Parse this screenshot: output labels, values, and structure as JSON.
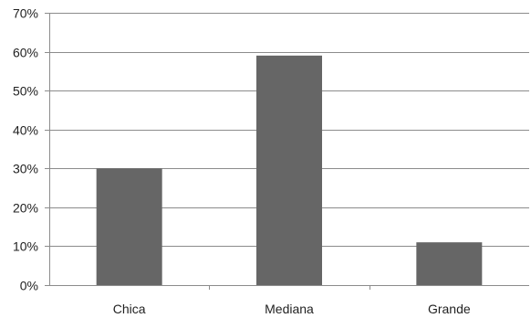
{
  "chart_data": {
    "type": "bar",
    "title": "",
    "xlabel": "",
    "ylabel": "",
    "categories": [
      "Chica",
      "Mediana",
      "Grande"
    ],
    "values": [
      30,
      59,
      11
    ],
    "ylim": [
      0,
      70
    ],
    "yticks": [
      0,
      10,
      20,
      30,
      40,
      50,
      60,
      70
    ],
    "ytick_labels": [
      "0%",
      "10%",
      "20%",
      "30%",
      "40%",
      "50%",
      "60%",
      "70%"
    ],
    "grid": true,
    "legend": "none",
    "bar_color": "#666666",
    "grid_color": "#8c8c8c",
    "axis_color": "#8c8c8c"
  }
}
